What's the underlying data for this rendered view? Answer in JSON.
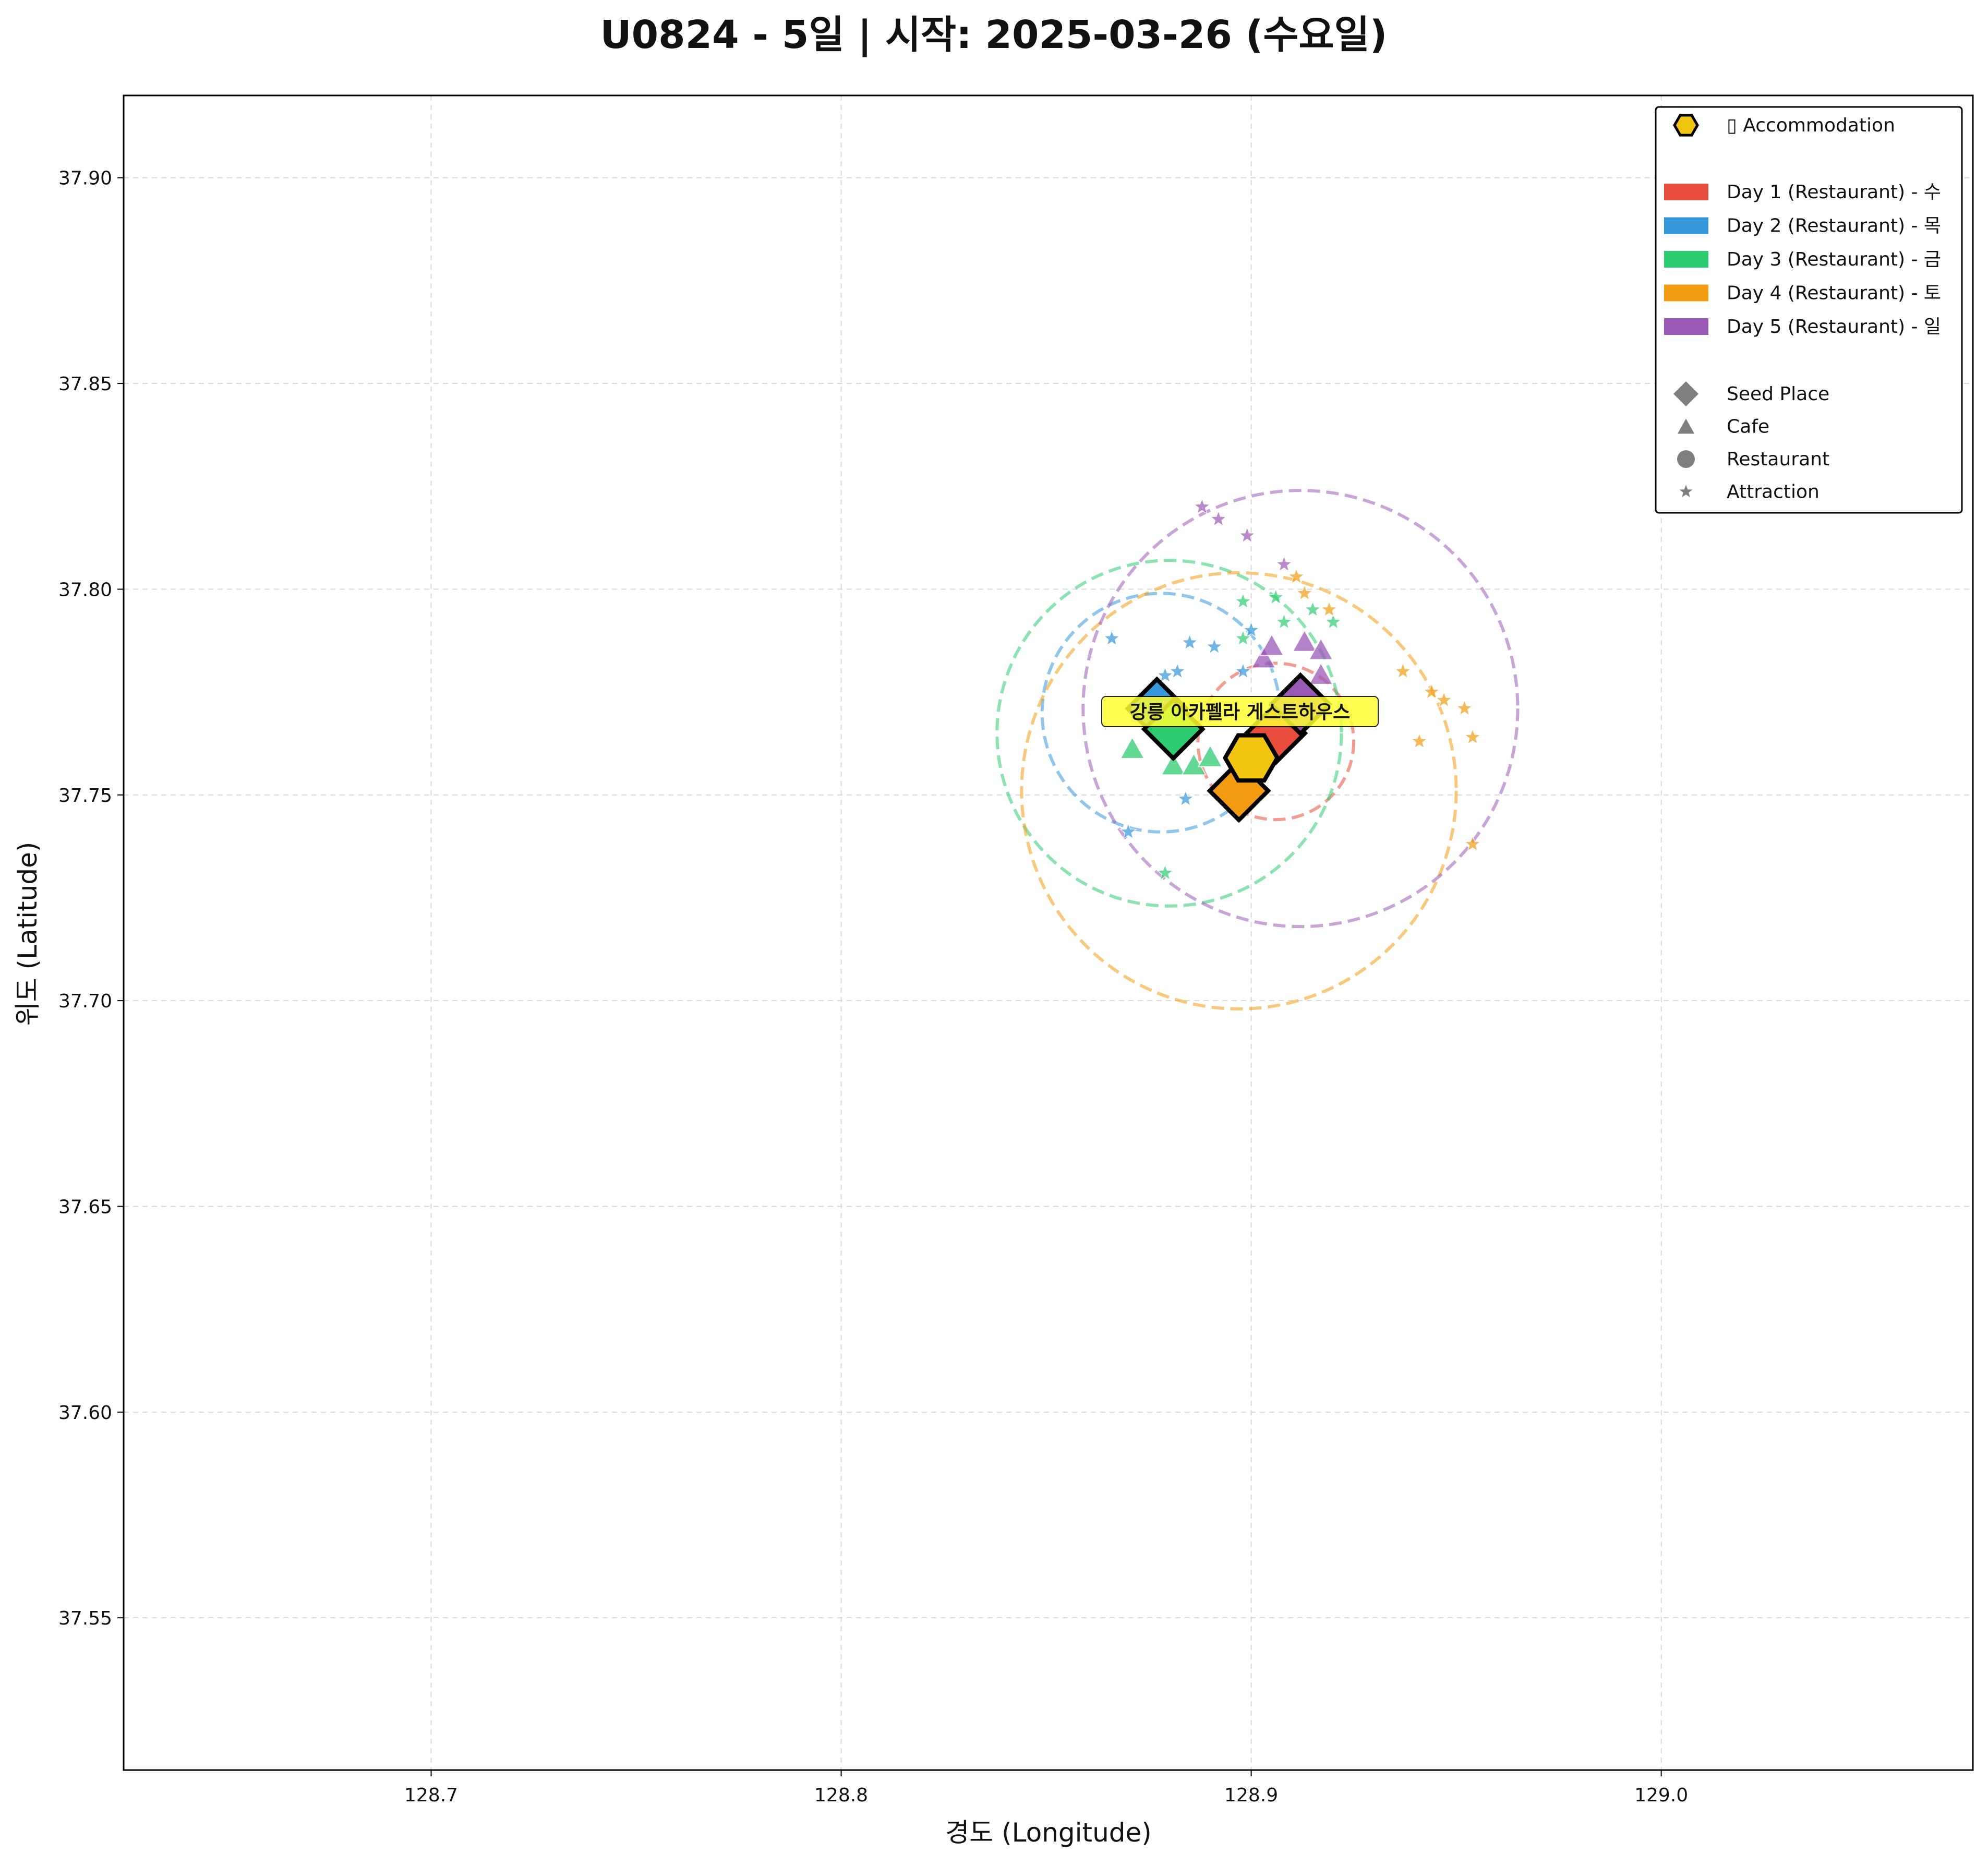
{
  "chart_data": {
    "type": "scatter",
    "title": "U0824 - 5일 | 시작: 2025-03-26 (수요일)",
    "xlabel": "경도 (Longitude)",
    "ylabel": "위도 (Latitude)",
    "xlim": [
      128.625,
      129.076
    ],
    "ylim": [
      37.513,
      37.92
    ],
    "xticks": [
      128.7,
      128.8,
      128.9,
      129.0
    ],
    "xtick_labels": [
      "128.7",
      "128.8",
      "128.9",
      "129.0"
    ],
    "yticks": [
      37.55,
      37.6,
      37.65,
      37.7,
      37.75,
      37.8,
      37.85,
      37.9
    ],
    "ytick_labels": [
      "37.55",
      "37.60",
      "37.65",
      "37.70",
      "37.75",
      "37.80",
      "37.85",
      "37.90"
    ],
    "grid": true,
    "legend_position": "top-right",
    "legend": {
      "accommodation": "▯ Accommodation",
      "days": [
        {
          "label": "Day 1 (Restaurant) - 수",
          "color": "#e74c3c"
        },
        {
          "label": "Day 2 (Restaurant) - 목",
          "color": "#3498db"
        },
        {
          "label": "Day 3 (Restaurant) - 금",
          "color": "#2ecc71"
        },
        {
          "label": "Day 4 (Restaurant) - 토",
          "color": "#f39c12"
        },
        {
          "label": "Day 5 (Restaurant) - 일",
          "color": "#9b59b6"
        }
      ],
      "markers": [
        {
          "label": "Seed Place",
          "shape": "diamond"
        },
        {
          "label": "Cafe",
          "shape": "triangle"
        },
        {
          "label": "Restaurant",
          "shape": "circle"
        },
        {
          "label": "Attraction",
          "shape": "star"
        }
      ]
    },
    "accommodation": {
      "name": "강릉 아카펠라 게스트하우스",
      "x": 128.9,
      "y": 37.759,
      "color": "#f1c40f"
    },
    "series": [
      {
        "name": "Day 1 (Restaurant) - 수",
        "color": "#e74c3c",
        "radius_circle": {
          "center": [
            128.906,
            37.763
          ],
          "radius_deg": 0.019
        },
        "seed": {
          "x": 128.906,
          "y": 37.765
        },
        "cafes": [],
        "attractions": []
      },
      {
        "name": "Day 2 (Restaurant) - 목",
        "color": "#3498db",
        "radius_circle": {
          "center": [
            128.878,
            37.77
          ],
          "radius_deg": 0.029
        },
        "seed": {
          "x": 128.877,
          "y": 37.771
        },
        "cafes": [],
        "attractions": [
          [
            128.866,
            37.788
          ],
          [
            128.879,
            37.779
          ],
          [
            128.882,
            37.78
          ],
          [
            128.885,
            37.787
          ],
          [
            128.891,
            37.786
          ],
          [
            128.898,
            37.78
          ],
          [
            128.9,
            37.79
          ],
          [
            128.87,
            37.741
          ],
          [
            128.884,
            37.749
          ]
        ]
      },
      {
        "name": "Day 3 (Restaurant) - 금",
        "color": "#2ecc71",
        "radius_circle": {
          "center": [
            128.88,
            37.765
          ],
          "radius_deg": 0.042
        },
        "seed": {
          "x": 128.881,
          "y": 37.766
        },
        "cafes": [
          [
            128.871,
            37.761
          ],
          [
            128.881,
            37.757
          ],
          [
            128.886,
            37.757
          ],
          [
            128.89,
            37.759
          ]
        ],
        "attractions": [
          [
            128.898,
            37.797
          ],
          [
            128.906,
            37.798
          ],
          [
            128.908,
            37.792
          ],
          [
            128.915,
            37.795
          ],
          [
            128.92,
            37.792
          ],
          [
            128.898,
            37.788
          ],
          [
            128.879,
            37.731
          ]
        ]
      },
      {
        "name": "Day 4 (Restaurant) - 토",
        "color": "#f39c12",
        "radius_circle": {
          "center": [
            128.897,
            37.751
          ],
          "radius_deg": 0.053
        },
        "seed": {
          "x": 128.897,
          "y": 37.751
        },
        "cafes": [],
        "attractions": [
          [
            128.911,
            37.803
          ],
          [
            128.913,
            37.799
          ],
          [
            128.919,
            37.795
          ],
          [
            128.937,
            37.78
          ],
          [
            128.944,
            37.775
          ],
          [
            128.947,
            37.773
          ],
          [
            128.952,
            37.771
          ],
          [
            128.941,
            37.763
          ],
          [
            128.954,
            37.764
          ],
          [
            128.954,
            37.738
          ]
        ]
      },
      {
        "name": "Day 5 (Restaurant) - 일",
        "color": "#9b59b6",
        "radius_circle": {
          "center": [
            128.912,
            37.771
          ],
          "radius_deg": 0.053
        },
        "seed": {
          "x": 128.912,
          "y": 37.772
        },
        "cafes": [
          [
            128.903,
            37.783
          ],
          [
            128.905,
            37.786
          ],
          [
            128.913,
            37.787
          ],
          [
            128.917,
            37.785
          ],
          [
            128.917,
            37.779
          ]
        ],
        "attractions": [
          [
            128.888,
            37.82
          ],
          [
            128.892,
            37.817
          ],
          [
            128.899,
            37.813
          ],
          [
            128.908,
            37.806
          ]
        ]
      }
    ]
  }
}
